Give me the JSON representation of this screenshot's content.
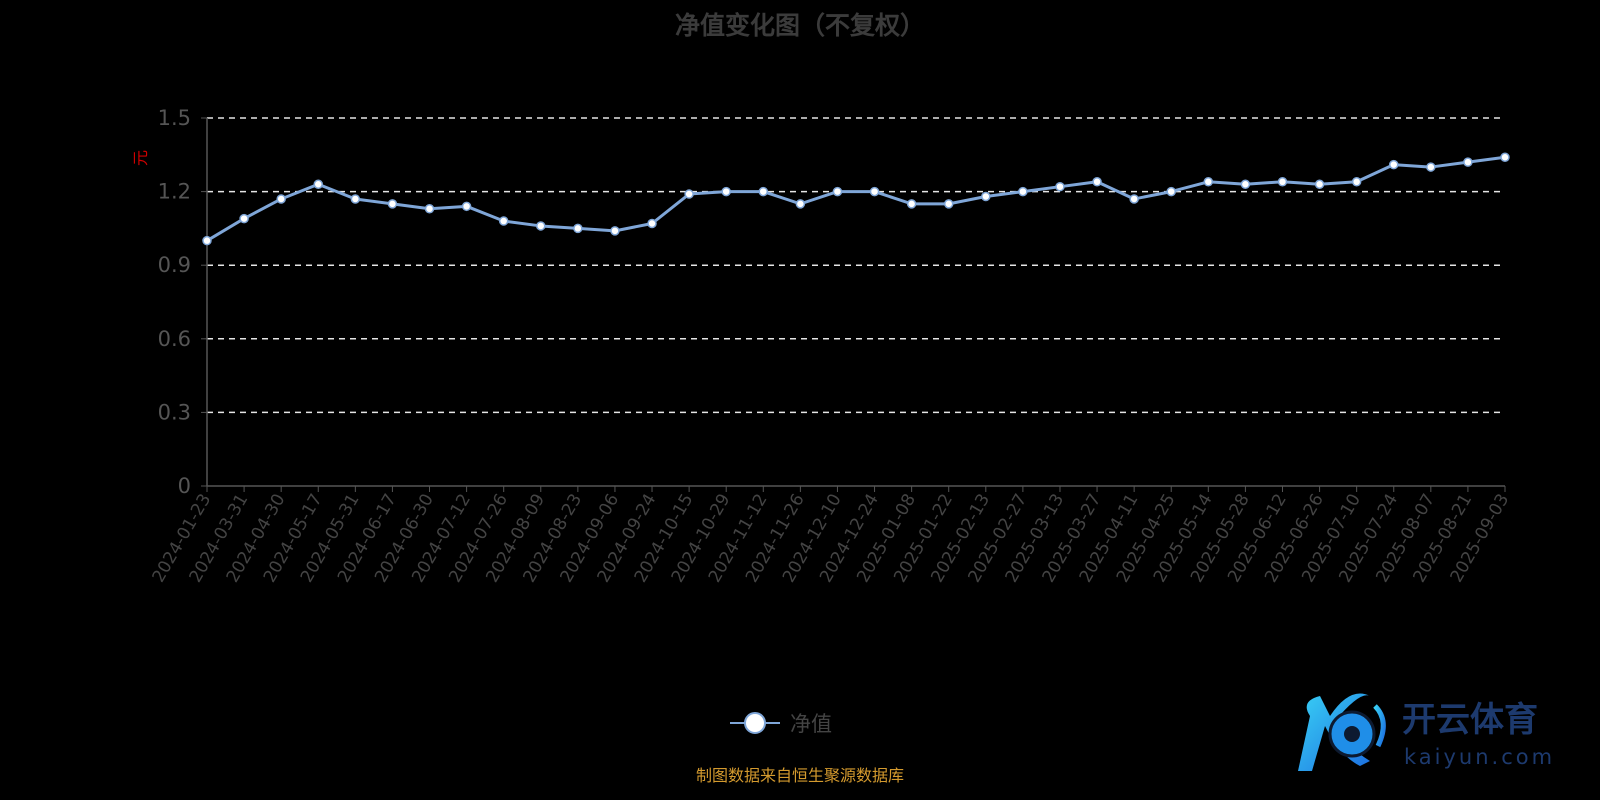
{
  "chart_data": {
    "type": "line",
    "title": "净值变化图（不复权）",
    "ylabel": "元",
    "ylim": [
      0,
      1.5
    ],
    "yticks": [
      "0",
      "0.3",
      "0.6",
      "0.9",
      "1.2",
      "1.5"
    ],
    "grid": "dashed horizontal",
    "legend_placement": "bottom-center",
    "series": [
      {
        "name": "净值",
        "color": "#7fa6d8",
        "x": [
          "2024-01-23",
          "2024-03-31",
          "2024-04-30",
          "2024-05-17",
          "2024-05-31",
          "2024-06-17",
          "2024-06-30",
          "2024-07-12",
          "2024-07-26",
          "2024-08-09",
          "2024-08-23",
          "2024-09-06",
          "2024-09-24",
          "2024-10-15",
          "2024-10-29",
          "2024-11-12",
          "2024-11-26",
          "2024-12-10",
          "2024-12-24",
          "2025-01-08",
          "2025-01-22",
          "2025-02-13",
          "2025-02-27",
          "2025-03-13",
          "2025-03-27",
          "2025-04-11",
          "2025-04-25",
          "2025-05-14",
          "2025-05-28",
          "2025-06-12",
          "2025-06-26",
          "2025-07-10",
          "2025-07-24",
          "2025-08-07",
          "2025-08-21",
          "2025-09-03"
        ],
        "values": [
          1.0,
          1.09,
          1.17,
          1.23,
          1.17,
          1.15,
          1.13,
          1.14,
          1.08,
          1.06,
          1.05,
          1.04,
          1.07,
          1.19,
          1.2,
          1.2,
          1.15,
          1.2,
          1.2,
          1.15,
          1.15,
          1.18,
          1.2,
          1.22,
          1.24,
          1.17,
          1.2,
          1.24,
          1.23,
          1.24,
          1.23,
          1.24,
          1.31,
          1.3,
          1.32,
          1.34
        ]
      }
    ]
  },
  "legend": {
    "label": "净值"
  },
  "footer": "制图数据来自恒生聚源数据库",
  "logo": {
    "name": "开云体育",
    "domain": "kaiyun.com"
  }
}
